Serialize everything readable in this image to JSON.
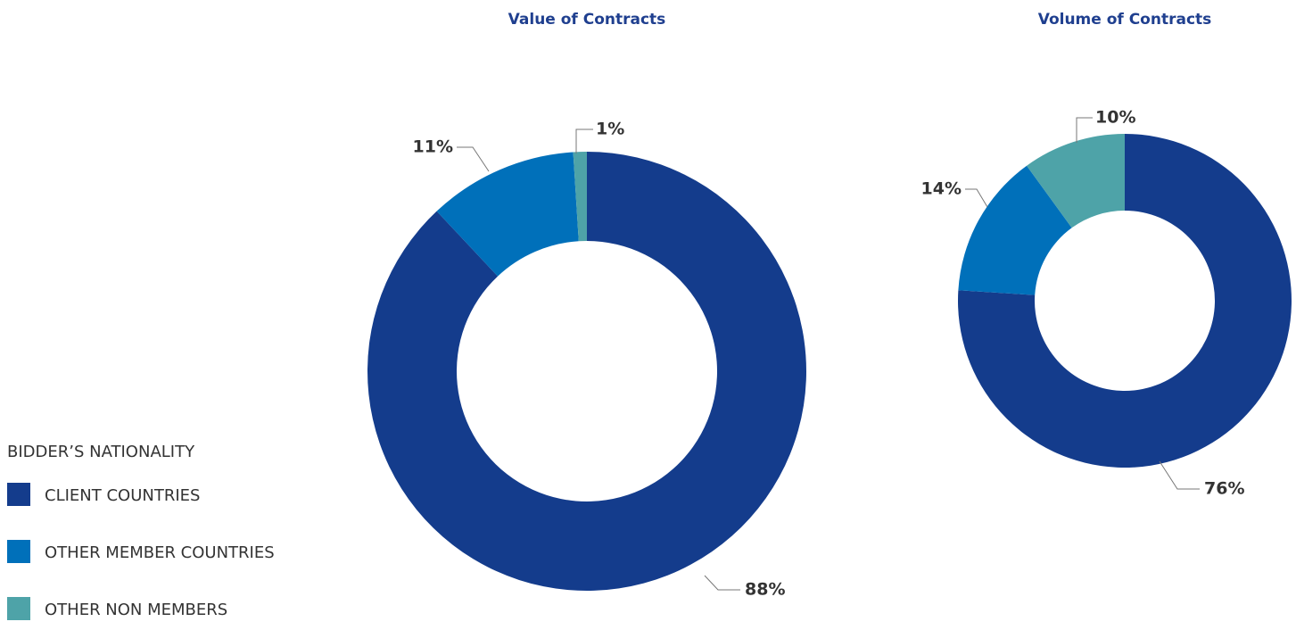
{
  "chart_data": [
    {
      "type": "pie",
      "donut": true,
      "title": "Value of Contracts",
      "categories": [
        "CLIENT COUNTRIES",
        "OTHER MEMBER COUNTRIES",
        "OTHER NON MEMBERS"
      ],
      "values": [
        88,
        11,
        1
      ],
      "value_labels": [
        "88%",
        "11%",
        "1%"
      ],
      "colors": [
        "#143c8c",
        "#0070ba",
        "#4ea3a8"
      ]
    },
    {
      "type": "pie",
      "donut": true,
      "title": "Volume of Contracts",
      "categories": [
        "CLIENT COUNTRIES",
        "OTHER MEMBER COUNTRIES",
        "OTHER NON MEMBERS"
      ],
      "values": [
        76,
        14,
        10
      ],
      "value_labels": [
        "76%",
        "14%",
        "10%"
      ],
      "colors": [
        "#143c8c",
        "#0070ba",
        "#4ea3a8"
      ]
    }
  ],
  "legend": {
    "title": "BIDDER’S NATIONALITY"
  }
}
